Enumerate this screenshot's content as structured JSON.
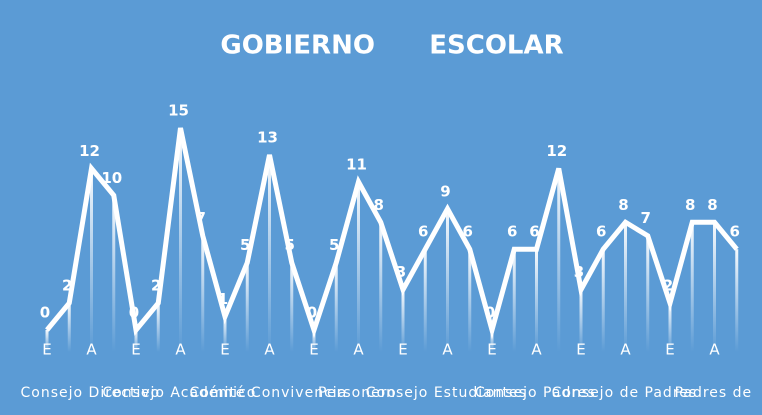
{
  "chart_data": {
    "type": "line",
    "title": "GOBIERNO      ESCOLAR",
    "categories": [
      "E",
      null,
      "A",
      null,
      "E",
      null,
      "A",
      null,
      "E",
      null,
      "A",
      null,
      "E",
      null,
      "A",
      null,
      "E",
      null,
      "A",
      null,
      "E",
      null,
      "A",
      null,
      "E",
      null,
      "A",
      null,
      "E",
      null,
      "A",
      null
    ],
    "group_labels": [
      "Consejo Directivo",
      "Consejo Académico",
      "Comité Convivencia",
      "Personero",
      "Consejo Estudiantes",
      "Consejo Padres",
      "Consejo de Padres",
      "Padres de"
    ],
    "series": [
      {
        "name": "Gobierno Escolar",
        "color": "#ffffff",
        "values": [
          0,
          2,
          12,
          10,
          0,
          2,
          15,
          7,
          1,
          5,
          13,
          5,
          0,
          5,
          11,
          8,
          3,
          6,
          9,
          6,
          0,
          6,
          6,
          12,
          3,
          6,
          8,
          7,
          2,
          8,
          8,
          6
        ]
      }
    ],
    "ylim": [
      0,
      15
    ]
  }
}
